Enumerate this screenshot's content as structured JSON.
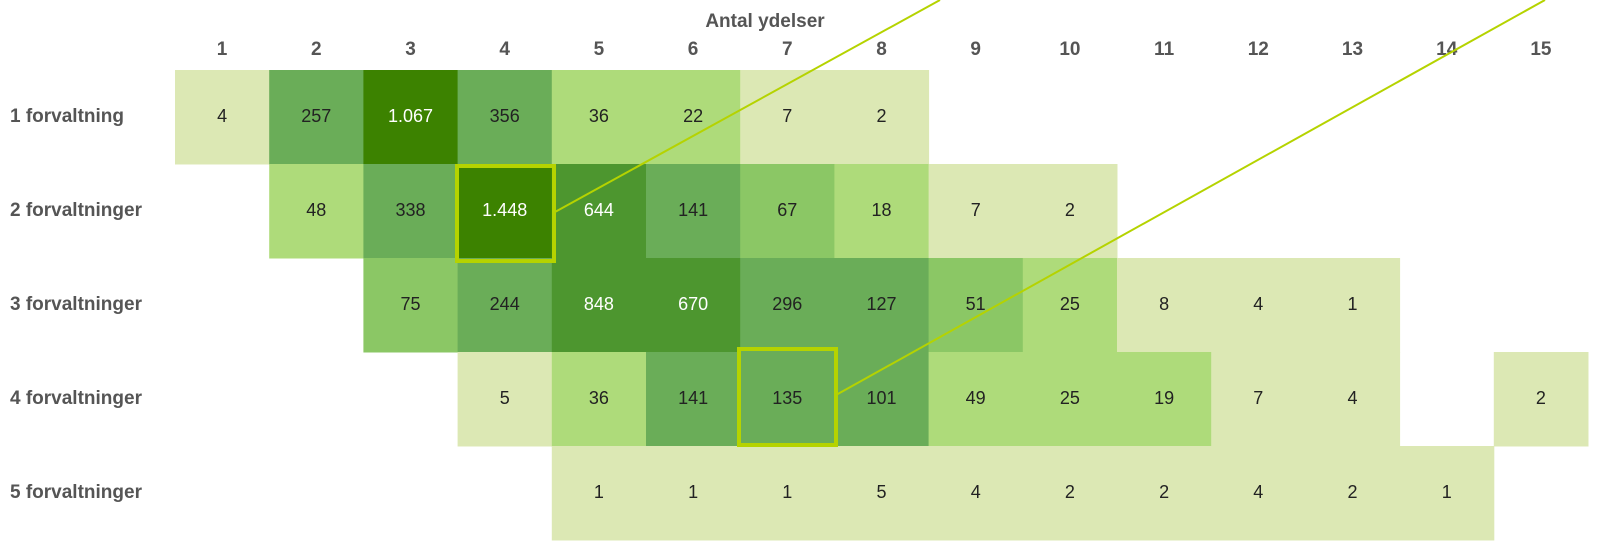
{
  "title": "Antal ydelser",
  "columns": [
    "1",
    "2",
    "3",
    "4",
    "5",
    "6",
    "7",
    "8",
    "9",
    "10",
    "11",
    "12",
    "13",
    "14",
    "15"
  ],
  "rows": [
    {
      "label": "1 forvaltning",
      "cells": [
        "4",
        "257",
        "1.067",
        "356",
        "36",
        "22",
        "7",
        "2",
        null,
        null,
        null,
        null,
        null,
        null,
        null
      ],
      "colors": [
        "#dce8b4",
        "#6aad58",
        "#3c8200",
        "#6aad58",
        "#aedb7a",
        "#aedb7a",
        "#dce8b4",
        "#dce8b4",
        null,
        null,
        null,
        null,
        null,
        null,
        null
      ]
    },
    {
      "label": "2 forvaltninger",
      "cells": [
        null,
        "48",
        "338",
        "1.448",
        "644",
        "141",
        "67",
        "18",
        "7",
        "2",
        null,
        null,
        null,
        null,
        null
      ],
      "colors": [
        null,
        "#aedb7a",
        "#6aad58",
        "#3c8200",
        "#4d962f",
        "#6aad58",
        "#8bc765",
        "#aedb7a",
        "#dce8b4",
        "#dce8b4",
        null,
        null,
        null,
        null,
        null
      ]
    },
    {
      "label": "3 forvaltninger",
      "cells": [
        null,
        null,
        "75",
        "244",
        "848",
        "670",
        "296",
        "127",
        "51",
        "25",
        "8",
        "4",
        "1",
        null,
        null
      ],
      "colors": [
        null,
        null,
        "#8bc765",
        "#6aad58",
        "#4d962f",
        "#4d962f",
        "#6aad58",
        "#6aad58",
        "#8bc765",
        "#aedb7a",
        "#dce8b4",
        "#dce8b4",
        "#dce8b4",
        null,
        null
      ]
    },
    {
      "label": "4 forvaltninger",
      "cells": [
        null,
        null,
        null,
        "5",
        "36",
        "141",
        "135",
        "101",
        "49",
        "25",
        "19",
        "7",
        "4",
        null,
        "2"
      ],
      "colors": [
        null,
        null,
        null,
        "#dce8b4",
        "#aedb7a",
        "#6aad58",
        "#6aad58",
        "#6aad58",
        "#aedb7a",
        "#aedb7a",
        "#aedb7a",
        "#dce8b4",
        "#dce8b4",
        null,
        "#dce8b4"
      ]
    },
    {
      "label": "5 forvaltninger",
      "cells": [
        null,
        null,
        null,
        null,
        "1",
        "1",
        "1",
        "5",
        "4",
        "2",
        "2",
        "4",
        "2",
        "1",
        null
      ],
      "colors": [
        null,
        null,
        null,
        null,
        "#dce8b4",
        "#dce8b4",
        "#dce8b4",
        "#dce8b4",
        "#dce8b4",
        "#dce8b4",
        "#dce8b4",
        "#dce8b4",
        "#dce8b4",
        "#dce8b4",
        null
      ]
    }
  ]
}
